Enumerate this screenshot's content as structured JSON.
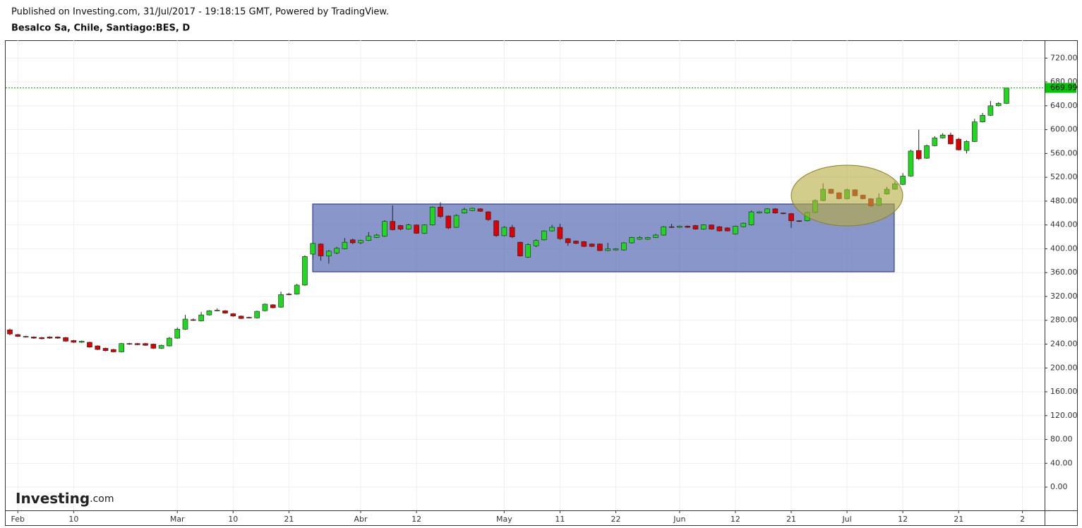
{
  "header": {
    "published": "Published on Investing.com, 31/Jul/2017 - 19:18:15 GMT, Powered by TradingView.",
    "symbol": "Besalco Sa, Chile, Santiago:BES, D"
  },
  "logo": {
    "name": "Investing",
    "suffix": ".com"
  },
  "chart_data": {
    "type": "candlestick",
    "grid": true,
    "up_color": "#1fd81f",
    "down_color": "#dd0000",
    "last_price_color": "#00c800",
    "last_price": 669.99,
    "categories": [
      null,
      "Feb",
      null,
      null,
      null,
      null,
      null,
      null,
      "10",
      null,
      null,
      null,
      null,
      null,
      null,
      null,
      null,
      null,
      null,
      null,
      null,
      "Mar",
      null,
      null,
      null,
      null,
      null,
      null,
      "10",
      null,
      null,
      null,
      null,
      null,
      null,
      "21",
      null,
      null,
      null,
      null,
      null,
      null,
      null,
      null,
      "Abr",
      null,
      null,
      null,
      null,
      null,
      null,
      "12",
      null,
      null,
      null,
      null,
      null,
      null,
      null,
      null,
      null,
      null,
      "May",
      null,
      null,
      null,
      null,
      null,
      null,
      "11",
      null,
      null,
      null,
      null,
      null,
      null,
      "22",
      null,
      null,
      null,
      null,
      null,
      null,
      null,
      "Jun",
      null,
      null,
      null,
      null,
      null,
      null,
      "12",
      null,
      null,
      null,
      null,
      null,
      null,
      "21",
      null,
      null,
      null,
      null,
      null,
      null,
      "Jul",
      null,
      null,
      null,
      null,
      null,
      null,
      "12",
      null,
      null,
      null,
      null,
      null,
      null,
      "21",
      null,
      null,
      null,
      null,
      null,
      null,
      null,
      "2"
    ],
    "open": [
      264,
      256,
      253,
      252,
      251,
      252,
      252,
      251,
      246,
      243,
      243,
      237,
      233,
      231,
      227,
      241,
      241,
      241,
      240,
      233,
      237,
      250,
      265,
      281,
      279,
      289,
      296,
      296,
      291,
      287,
      285,
      284,
      296,
      306,
      302,
      324,
      324,
      339,
      391,
      408,
      388,
      393,
      400,
      415,
      410,
      414,
      419,
      421,
      446,
      439,
      433,
      440,
      426,
      440,
      470,
      455,
      436,
      460,
      464,
      467,
      462,
      447,
      422,
      436,
      411,
      386,
      405,
      415,
      430,
      436,
      417,
      413,
      412,
      408,
      408,
      397,
      398,
      398,
      410,
      416,
      416,
      419,
      423,
      437,
      436,
      438,
      439,
      433,
      440,
      437,
      435,
      425,
      437,
      440,
      460,
      460,
      467,
      460,
      459,
      447,
      447,
      461,
      481,
      500,
      494,
      484,
      499,
      490,
      484,
      473,
      492,
      500,
      508,
      522,
      565,
      552,
      573,
      586,
      591,
      584,
      565,
      580,
      613,
      624,
      640,
      644,
      null,
      null
    ],
    "high": [
      266,
      257,
      254,
      253,
      252,
      253,
      253,
      252,
      247,
      246,
      244,
      238,
      234,
      232,
      242,
      242,
      242,
      242,
      241,
      239,
      252,
      268,
      289,
      283,
      294,
      297,
      300,
      297,
      292,
      288,
      286,
      296,
      308,
      307,
      328,
      326,
      341,
      389,
      410,
      409,
      398,
      403,
      418,
      417,
      415,
      428,
      425,
      448,
      473,
      440,
      442,
      441,
      441,
      471,
      478,
      456,
      458,
      469,
      469,
      468,
      463,
      448,
      438,
      440,
      412,
      409,
      416,
      431,
      440,
      442,
      418,
      414,
      413,
      409,
      409,
      410,
      401,
      411,
      420,
      421,
      420,
      425,
      438,
      442,
      439,
      439,
      440,
      441,
      441,
      438,
      436,
      439,
      444,
      464,
      463,
      468,
      468,
      461,
      460,
      448,
      462,
      483,
      510,
      501,
      495,
      501,
      500,
      491,
      485,
      493,
      504,
      513,
      527,
      566,
      600,
      575,
      589,
      594,
      595,
      586,
      582,
      618,
      628,
      648,
      646,
      670,
      null,
      null
    ],
    "low": [
      255,
      252,
      251,
      249,
      248,
      249,
      249,
      244,
      242,
      242,
      234,
      230,
      228,
      226,
      226,
      239,
      238,
      237,
      232,
      232,
      236,
      249,
      264,
      279,
      278,
      288,
      295,
      291,
      286,
      282,
      283,
      283,
      295,
      300,
      301,
      322,
      323,
      338,
      382,
      380,
      375,
      391,
      399,
      408,
      408,
      413,
      418,
      420,
      431,
      431,
      432,
      425,
      425,
      439,
      452,
      433,
      435,
      459,
      463,
      462,
      447,
      420,
      421,
      418,
      387,
      385,
      403,
      414,
      429,
      415,
      405,
      408,
      403,
      403,
      396,
      396,
      397,
      397,
      409,
      415,
      415,
      418,
      422,
      435,
      435,
      435,
      432,
      432,
      432,
      429,
      429,
      424,
      436,
      439,
      459,
      459,
      459,
      458,
      435,
      445,
      446,
      460,
      480,
      492,
      483,
      483,
      488,
      483,
      470,
      472,
      491,
      499,
      507,
      521,
      549,
      551,
      572,
      585,
      575,
      565,
      560,
      579,
      612,
      623,
      639,
      643,
      null,
      null
    ],
    "close": [
      257,
      253,
      252,
      250,
      249,
      250,
      250,
      245,
      243,
      245,
      235,
      231,
      229,
      227,
      241,
      240,
      239,
      238,
      233,
      238,
      250,
      265,
      282,
      280,
      289,
      296,
      297,
      292,
      287,
      283,
      284,
      295,
      307,
      301,
      323,
      323,
      339,
      387,
      409,
      388,
      396,
      401,
      411,
      410,
      414,
      421,
      423,
      446,
      432,
      433,
      440,
      426,
      440,
      470,
      454,
      435,
      456,
      466,
      468,
      463,
      449,
      422,
      436,
      420,
      388,
      407,
      414,
      430,
      436,
      417,
      410,
      409,
      404,
      404,
      397,
      400,
      400,
      410,
      419,
      419,
      419,
      423,
      437,
      436,
      438,
      436,
      433,
      440,
      433,
      430,
      430,
      438,
      443,
      462,
      462,
      467,
      460,
      459,
      447,
      446,
      461,
      481,
      500,
      493,
      484,
      499,
      489,
      484,
      472,
      485,
      500,
      509,
      522,
      564,
      551,
      573,
      586,
      591,
      576,
      566,
      580,
      613,
      624,
      640,
      644,
      669.99,
      null,
      null
    ],
    "ylim": [
      -39,
      750
    ],
    "yticks": [
      {
        "value": 0,
        "label": "0.00"
      },
      {
        "value": 40,
        "label": "40.00"
      },
      {
        "value": 80,
        "label": "80.00"
      },
      {
        "value": 120,
        "label": "120.00"
      },
      {
        "value": 160,
        "label": "160.00"
      },
      {
        "value": 200,
        "label": "200.00"
      },
      {
        "value": 240,
        "label": "240.00"
      },
      {
        "value": 280,
        "label": "280.00"
      },
      {
        "value": 320,
        "label": "320.00"
      },
      {
        "value": 360,
        "label": "360.00"
      },
      {
        "value": 400,
        "label": "400.00"
      },
      {
        "value": 440,
        "label": "440.00"
      },
      {
        "value": 480,
        "label": "480.00"
      },
      {
        "value": 520,
        "label": "520.00"
      },
      {
        "value": 560,
        "label": "560.00"
      },
      {
        "value": 600,
        "label": "600.00"
      },
      {
        "value": 640,
        "label": "640.00"
      },
      {
        "value": 680,
        "label": "680.00"
      },
      {
        "value": 720,
        "label": "720.00"
      }
    ]
  }
}
